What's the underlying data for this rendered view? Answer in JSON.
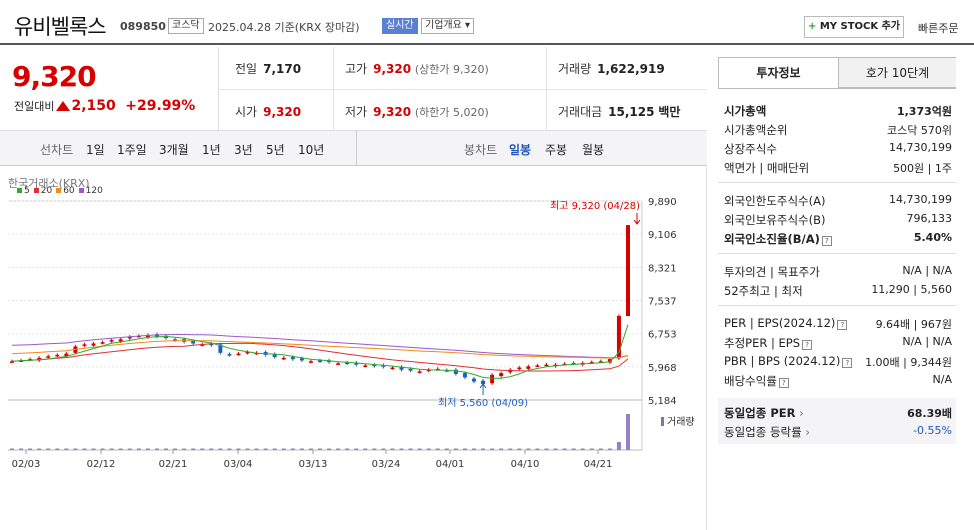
{
  "header": {
    "name": "유비벨록스",
    "code": "089850",
    "market_badge": "코스닥",
    "date_text": "2025.04.28 기준(KRX 장마감)",
    "realtime_badge": "실시간",
    "corp_overview": "기업개요",
    "mystock_plus": "+",
    "mystock_label": "MY STOCK 추가",
    "quick_order": "빠른주문"
  },
  "price": {
    "current": "9,320",
    "prev_label": "전일대비",
    "change": "2,150",
    "change_pct": "+29.99%"
  },
  "quote": {
    "prev": {
      "label": "전일",
      "value": "7,170"
    },
    "high": {
      "label": "고가",
      "value": "9,320",
      "sub": "(상한가 9,320)"
    },
    "volume": {
      "label": "거래량",
      "value": "1,622,919"
    },
    "open": {
      "label": "시가",
      "value": "9,320"
    },
    "low": {
      "label": "저가",
      "value": "9,320",
      "sub": "(하한가 5,020)"
    },
    "amount": {
      "label": "거래대금",
      "value": "15,125",
      "unit": "백만"
    }
  },
  "period_tabs": {
    "label": "선차트",
    "items": [
      "1일",
      "1주일",
      "3개월",
      "1년",
      "3년",
      "5년",
      "10년"
    ]
  },
  "candle_tabs": {
    "label": "봉차트",
    "items": [
      "일봉",
      "주봉",
      "월봉"
    ],
    "active": "일봉"
  },
  "chart_data": {
    "type": "candlestick",
    "exchange_label": "한국거래소(KRX)",
    "ma_legend": [
      {
        "name": "5",
        "color": "#2eaa2e"
      },
      {
        "name": "20",
        "color": "#e03030"
      },
      {
        "name": "60",
        "color": "#f08a1a"
      },
      {
        "name": "120",
        "color": "#9b59c9"
      }
    ],
    "y_ticks": [
      "9,890",
      "9,106",
      "8,321",
      "7,537",
      "6,753",
      "5,968",
      "5,184"
    ],
    "y_tick_values": [
      9890,
      9106,
      8321,
      7537,
      6753,
      5968,
      5184
    ],
    "ylim": [
      5184,
      9890
    ],
    "x_ticks": [
      "02/03",
      "02/12",
      "02/21",
      "03/04",
      "03/13",
      "03/24",
      "04/01",
      "04/10",
      "04/21"
    ],
    "high_label": "최고 9,320 (04/28)",
    "low_label": "최저 5,560 (04/09)",
    "volume_label": "거래량",
    "closes": [
      6100,
      6120,
      6150,
      6180,
      6220,
      6250,
      6280,
      6450,
      6500,
      6520,
      6550,
      6600,
      6620,
      6680,
      6700,
      6720,
      6680,
      6650,
      6600,
      6560,
      6520,
      6500,
      6480,
      6300,
      6250,
      6280,
      6320,
      6300,
      6250,
      6200,
      6180,
      6150,
      6120,
      6100,
      6100,
      6080,
      6050,
      6050,
      6020,
      6000,
      5990,
      5970,
      5950,
      5900,
      5880,
      5860,
      5900,
      5920,
      5880,
      5800,
      5720,
      5620,
      5560,
      5780,
      5820,
      5900,
      5950,
      5980,
      6000,
      6020,
      6020,
      6040,
      6050,
      6060,
      6080,
      6100,
      6150,
      7170,
      9320
    ],
    "highlight_index": 68
  },
  "side": {
    "tab1": "투자정보",
    "tab2": "호가 10단계",
    "market_cap": {
      "label": "시가총액",
      "value": "1,373억원"
    },
    "market_cap_rank": {
      "label": "시가총액순위",
      "value": "코스닥 570위"
    },
    "shares": {
      "label": "상장주식수",
      "value": "14,730,199"
    },
    "face_value": {
      "label": "액면가 | 매매단위",
      "value": "500원 | 1주"
    },
    "foreign_limit": {
      "label": "외국인한도주식수(A)",
      "value": "14,730,199"
    },
    "foreign_hold": {
      "label": "외국인보유주식수(B)",
      "value": "796,133"
    },
    "foreign_ratio": {
      "label": "외국인소진율(B/A)",
      "value": "5.40%"
    },
    "opinion": {
      "label": "투자의견 | 목표주가",
      "value": "N/A | N/A"
    },
    "w52": {
      "label": "52주최고 | 최저",
      "value": "11,290 | 5,560"
    },
    "per_eps": {
      "label": "PER | EPS(2024.12)",
      "value": "9.64배 | 967원"
    },
    "est_per_eps": {
      "label": "추정PER | EPS",
      "value": "N/A | N/A"
    },
    "pbr_bps": {
      "label": "PBR | BPS (2024.12)",
      "value": "1.00배 | 9,344원"
    },
    "dividend": {
      "label": "배당수익률",
      "value": "N/A"
    },
    "industry_per": {
      "label": "동일업종 PER",
      "value": "68.39배"
    },
    "industry_rate": {
      "label": "동일업종 등락률",
      "value": "-0.55%"
    }
  }
}
